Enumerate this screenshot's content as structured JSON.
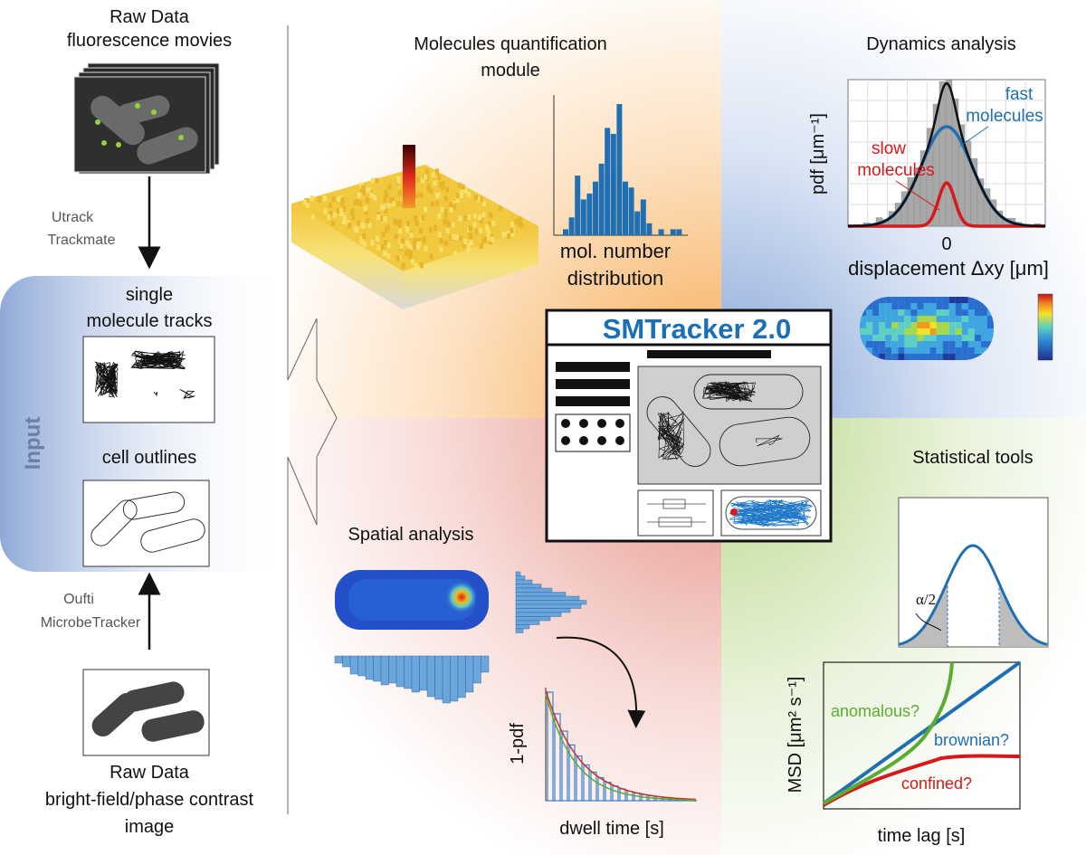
{
  "input": {
    "raw_fluo_title": [
      "Raw Data",
      "fluorescence movies"
    ],
    "track_tools": [
      "Utrack",
      "Trackmate"
    ],
    "panel_label": "Input",
    "tracks_title": [
      "single",
      "molecule tracks"
    ],
    "outlines_title": "cell outlines",
    "seg_tools": [
      "Oufti",
      "MicrobeTracker"
    ],
    "raw_bf_title": [
      "Raw Data",
      "bright-field/phase contrast",
      "image"
    ]
  },
  "quantification": {
    "title": [
      "Molecules quantification",
      "module"
    ],
    "hist_label": [
      "mol. number",
      "distribution"
    ],
    "hist_values": [
      1,
      3,
      10,
      6,
      7,
      9,
      12,
      18,
      17,
      22,
      9,
      8,
      4,
      6,
      2,
      0,
      1,
      0,
      1,
      1
    ]
  },
  "dynamics": {
    "title": "Dynamics analysis",
    "ylabel": "pdf [μm⁻¹]",
    "x_tick": "0",
    "xlabel": "displacement Δxy [μm]",
    "fast_label": [
      "fast",
      "molecules"
    ],
    "slow_label": [
      "slow",
      "molecules"
    ]
  },
  "app": {
    "title": "SMTracker 2.0"
  },
  "spatial": {
    "title": "Spatial analysis",
    "dwell_ylabel": "1-pdf",
    "dwell_xlabel": "dwell time [s]"
  },
  "statistics": {
    "title": "Statistical tools",
    "alpha_label": "α/2",
    "msd_ylabel": "MSD [μm² s⁻¹]",
    "msd_xlabel": "time lag [s]",
    "anomalous": "anomalous?",
    "brownian": "brownian?",
    "confined": "confined?"
  },
  "colors": {
    "blue": "#1f6fb2",
    "red": "#d7191c",
    "green": "#5aac32",
    "title_blue": "#1a6fb5"
  }
}
